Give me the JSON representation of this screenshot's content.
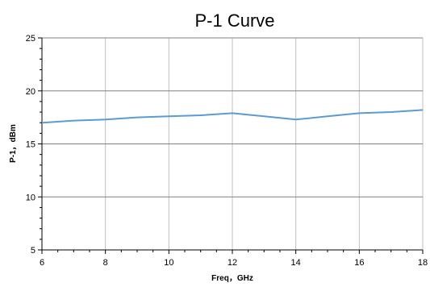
{
  "chart_data": {
    "type": "line",
    "title": "P-1 Curve",
    "xlabel": "Freq，GHz",
    "ylabel": "P-1，dBm",
    "xlim": [
      6,
      18
    ],
    "ylim": [
      5,
      25
    ],
    "xticks": [
      "6",
      "8",
      "10",
      "12",
      "14",
      "16",
      "18"
    ],
    "yticks": [
      "5",
      "10",
      "15",
      "20",
      "25"
    ],
    "grid": true,
    "legend": "none",
    "series": [
      {
        "color": "#5b9bd5",
        "x": [
          6,
          7,
          8,
          9,
          10,
          11,
          12,
          13,
          14,
          15,
          16,
          17,
          18
        ],
        "y": [
          17.0,
          17.2,
          17.3,
          17.5,
          17.6,
          17.7,
          17.9,
          17.6,
          17.3,
          17.6,
          17.9,
          18.0,
          18.2
        ]
      }
    ],
    "colors": {
      "line": "#5b9bd5",
      "vgrid": "#bfbfbf",
      "hgrid": "#808080",
      "axis": "#000000"
    }
  }
}
